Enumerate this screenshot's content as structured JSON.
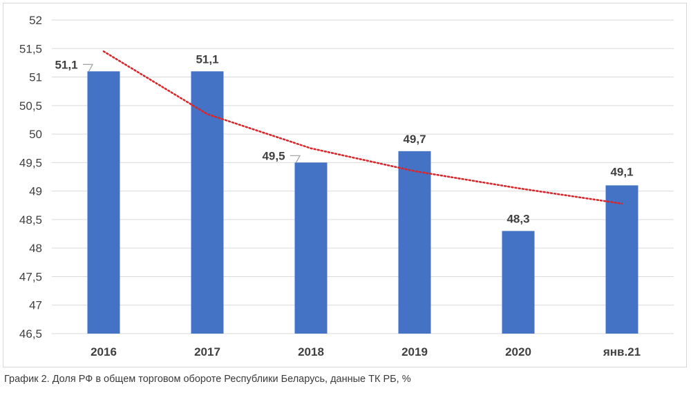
{
  "caption": "График 2. Доля РФ в общем торговом обороте Республики Беларусь, данные ТК РБ, %",
  "colors": {
    "bar": "#4472C4",
    "trend": "#D9262B",
    "grid": "#D9D9D9",
    "label": "#404040",
    "leader": "#A6A6A6"
  },
  "chart_data": {
    "type": "bar",
    "categories": [
      "2016",
      "2017",
      "2018",
      "2019",
      "2020",
      "янв.21"
    ],
    "values": [
      51.1,
      51.1,
      49.5,
      49.7,
      48.3,
      49.1
    ],
    "data_labels": [
      "51,1",
      "51,1",
      "49,5",
      "49,7",
      "48,3",
      "49,1"
    ],
    "ylim": [
      46.5,
      52
    ],
    "y_ticks": [
      46.5,
      47,
      47.5,
      48,
      48.5,
      49,
      49.5,
      50,
      50.5,
      51,
      51.5,
      52
    ],
    "y_tick_labels": [
      "46,5",
      "47",
      "47,5",
      "48",
      "48,5",
      "49",
      "49,5",
      "50",
      "50,5",
      "51",
      "51,5",
      "52"
    ],
    "grid": true,
    "legend": "none",
    "trendline": {
      "type": "logarithmic",
      "style": "dotted",
      "values": [
        51.45,
        50.35,
        49.75,
        49.35,
        49.05,
        48.78
      ]
    }
  }
}
